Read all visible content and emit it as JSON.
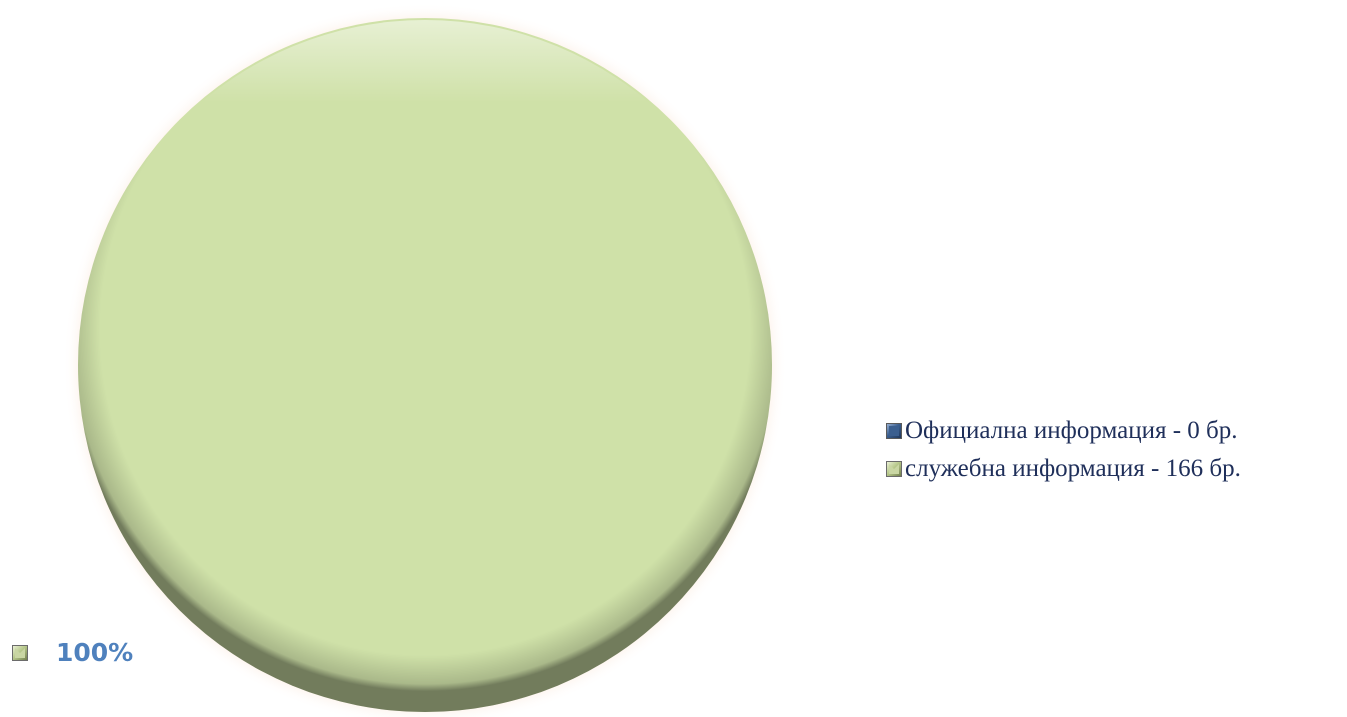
{
  "chart_data": {
    "type": "pie",
    "title": "",
    "categories": [
      "Официална информация - 0 бр.",
      "служебна информация - 166 бр."
    ],
    "values": [
      0,
      166
    ],
    "colors": [
      "#3b5f8f",
      "#cfe1a8"
    ],
    "data_labels": [
      "",
      "100%"
    ],
    "legend": "right",
    "data_label_color": "#4f81bd"
  },
  "legend": {
    "items": [
      {
        "label": "Официална информация - 0 бр.",
        "color": "#3b5f8f"
      },
      {
        "label": "служебна информация - 166 бр.",
        "color": "#c9d6a3"
      }
    ]
  },
  "labels": {
    "percent_label": "100%"
  }
}
